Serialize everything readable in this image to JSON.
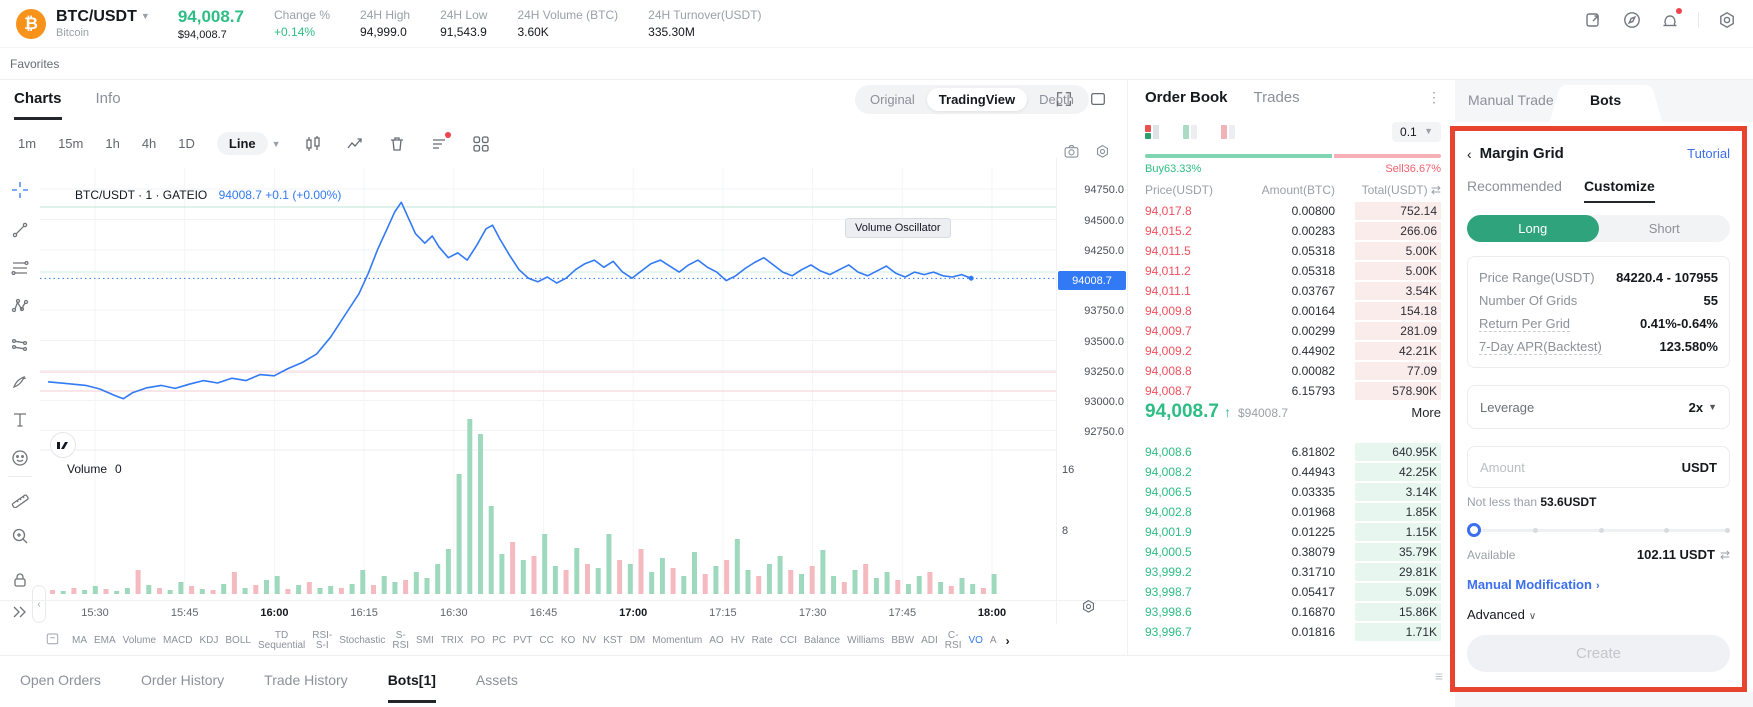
{
  "topbar": {
    "pair": "BTC/USDT",
    "pair_sub": "Bitcoin",
    "price": "94,008.7",
    "price_usd": "$94,008.7",
    "stats": [
      {
        "label": "Change %",
        "value": "+0.14%",
        "green": true
      },
      {
        "label": "24H High",
        "value": "94,999.0"
      },
      {
        "label": "24H Low",
        "value": "91,543.9"
      },
      {
        "label": "24H Volume (BTC)",
        "value": "3.60K"
      },
      {
        "label": "24H Turnover(USDT)",
        "value": "335.30M"
      }
    ]
  },
  "favorites_label": "Favorites",
  "chart": {
    "tabs": [
      {
        "label": "Charts",
        "active": true
      },
      {
        "label": "Info",
        "active": false
      }
    ],
    "timeframes": [
      "1m",
      "15m",
      "1h",
      "4h",
      "1D"
    ],
    "chart_type": "Line",
    "view_modes": [
      {
        "label": "Original",
        "active": false
      },
      {
        "label": "TradingView",
        "active": true
      },
      {
        "label": "Depth",
        "active": false
      }
    ],
    "legend_symbol": "BTC/USDT · 1 · GATEIO",
    "legend_quote": "94008.7 +0.1 (+0.00%)",
    "tooltip": "Volume Oscillator",
    "volume_legend": "Volume",
    "volume_value": "0",
    "price_axis": [
      "94750.0",
      "94500.0",
      "94250.0",
      "93750.0",
      "93500.0",
      "93250.0",
      "93000.0",
      "92750.0"
    ],
    "price_tag": "94008.7",
    "vol_axis": [
      "16",
      "8"
    ],
    "time_axis": [
      "15:30",
      "15:45",
      "16:00",
      "16:15",
      "16:30",
      "16:45",
      "17:00",
      "17:15",
      "17:30",
      "17:45",
      "18:00"
    ],
    "bold_times": [
      "16:00",
      "17:00",
      "18:00"
    ],
    "indicators": [
      "MA",
      "EMA",
      "Volume",
      "MACD",
      "KDJ",
      "BOLL",
      "TD\nSequential",
      "RSI-\nS-I",
      "Stochastic",
      "S-\nRSI",
      "SMI",
      "TRIX",
      "PO",
      "PC",
      "PVT",
      "CC",
      "KO",
      "NV",
      "KST",
      "DM",
      "Momentum",
      "AO",
      "HV",
      "Rate",
      "CCI",
      "Balance",
      "Williams",
      "BBW",
      "ADI",
      "C-\nRSI",
      "VO",
      "A"
    ],
    "active_indicator": "VO",
    "series": [
      [
        0,
        93150
      ],
      [
        0.02,
        93135
      ],
      [
        0.04,
        93120
      ],
      [
        0.055,
        93090
      ],
      [
        0.07,
        93040
      ],
      [
        0.08,
        93010
      ],
      [
        0.09,
        93060
      ],
      [
        0.105,
        93100
      ],
      [
        0.12,
        93120
      ],
      [
        0.135,
        93095
      ],
      [
        0.15,
        93130
      ],
      [
        0.165,
        93160
      ],
      [
        0.18,
        93140
      ],
      [
        0.195,
        93180
      ],
      [
        0.21,
        93160
      ],
      [
        0.225,
        93210
      ],
      [
        0.24,
        93200
      ],
      [
        0.255,
        93260
      ],
      [
        0.27,
        93310
      ],
      [
        0.285,
        93380
      ],
      [
        0.3,
        93520
      ],
      [
        0.315,
        93700
      ],
      [
        0.33,
        93880
      ],
      [
        0.34,
        94050
      ],
      [
        0.35,
        94250
      ],
      [
        0.36,
        94420
      ],
      [
        0.368,
        94560
      ],
      [
        0.375,
        94640
      ],
      [
        0.382,
        94520
      ],
      [
        0.39,
        94380
      ],
      [
        0.4,
        94300
      ],
      [
        0.408,
        94360
      ],
      [
        0.415,
        94270
      ],
      [
        0.425,
        94180
      ],
      [
        0.435,
        94220
      ],
      [
        0.445,
        94160
      ],
      [
        0.455,
        94280
      ],
      [
        0.465,
        94420
      ],
      [
        0.472,
        94450
      ],
      [
        0.48,
        94330
      ],
      [
        0.49,
        94200
      ],
      [
        0.5,
        94080
      ],
      [
        0.51,
        94010
      ],
      [
        0.52,
        93980
      ],
      [
        0.53,
        94020
      ],
      [
        0.54,
        93970
      ],
      [
        0.55,
        94010
      ],
      [
        0.56,
        94080
      ],
      [
        0.57,
        94130
      ],
      [
        0.58,
        94160
      ],
      [
        0.59,
        94100
      ],
      [
        0.6,
        94150
      ],
      [
        0.61,
        94060
      ],
      [
        0.62,
        94010
      ],
      [
        0.63,
        94070
      ],
      [
        0.64,
        94130
      ],
      [
        0.65,
        94160
      ],
      [
        0.66,
        94110
      ],
      [
        0.67,
        94060
      ],
      [
        0.68,
        94120
      ],
      [
        0.69,
        94160
      ],
      [
        0.7,
        94100
      ],
      [
        0.71,
        94060
      ],
      [
        0.72,
        93990
      ],
      [
        0.73,
        94030
      ],
      [
        0.74,
        94090
      ],
      [
        0.75,
        94140
      ],
      [
        0.76,
        94180
      ],
      [
        0.77,
        94120
      ],
      [
        0.78,
        94060
      ],
      [
        0.79,
        94030
      ],
      [
        0.8,
        94080
      ],
      [
        0.81,
        94120
      ],
      [
        0.82,
        94070
      ],
      [
        0.83,
        94040
      ],
      [
        0.84,
        94080
      ],
      [
        0.85,
        94120
      ],
      [
        0.86,
        94060
      ],
      [
        0.87,
        94030
      ],
      [
        0.88,
        94070
      ],
      [
        0.89,
        94110
      ],
      [
        0.9,
        94050
      ],
      [
        0.91,
        94020
      ],
      [
        0.92,
        94060
      ],
      [
        0.93,
        94040
      ],
      [
        0.94,
        94060
      ],
      [
        0.95,
        94030
      ],
      [
        0.96,
        94020
      ],
      [
        0.97,
        94040
      ],
      [
        0.98,
        94009
      ]
    ],
    "volumes": [
      -4,
      3,
      -6,
      4,
      8,
      -5,
      3,
      6,
      -24,
      9,
      -6,
      4,
      12,
      -8,
      5,
      -4,
      10,
      -22,
      6,
      -9,
      14,
      18,
      -5,
      9,
      -12,
      6,
      8,
      -6,
      10,
      24,
      -9,
      18,
      12,
      -14,
      22,
      16,
      30,
      45,
      120,
      175,
      160,
      88,
      40,
      -52,
      34,
      -38,
      60,
      28,
      -24,
      46,
      -30,
      26,
      60,
      -34,
      30,
      -45,
      22,
      36,
      -26,
      18,
      42,
      -20,
      28,
      -34,
      55,
      24,
      -18,
      30,
      38,
      -24,
      20,
      -28,
      44,
      18,
      -12,
      24,
      -30,
      16,
      22,
      -14,
      10,
      18,
      -22,
      12,
      -8,
      16,
      10,
      -6,
      20
    ]
  },
  "order_book": {
    "tabs": [
      {
        "label": "Order Book",
        "active": true
      },
      {
        "label": "Trades",
        "active": false
      }
    ],
    "precision": "0.1",
    "buy_ratio": "Buy63.33%",
    "sell_ratio": "Sell36.67%",
    "buy_pct": 63.33,
    "headers": [
      "Price(USDT)",
      "Amount(BTC)",
      "Total(USDT) ⇄"
    ],
    "asks": [
      [
        "94,017.8",
        "0.00800",
        "752.14"
      ],
      [
        "94,015.2",
        "0.00283",
        "266.06"
      ],
      [
        "94,011.5",
        "0.05318",
        "5.00K"
      ],
      [
        "94,011.2",
        "0.05318",
        "5.00K"
      ],
      [
        "94,011.1",
        "0.03767",
        "3.54K"
      ],
      [
        "94,009.8",
        "0.00164",
        "154.18"
      ],
      [
        "94,009.7",
        "0.00299",
        "281.09"
      ],
      [
        "94,009.2",
        "0.44902",
        "42.21K"
      ],
      [
        "94,008.8",
        "0.00082",
        "77.09"
      ],
      [
        "94,008.7",
        "6.15793",
        "578.90K"
      ]
    ],
    "last_price": "94,008.7",
    "last_arrow": "↑",
    "last_usd": "$94008.7",
    "more_label": "More",
    "bids": [
      [
        "94,008.6",
        "6.81802",
        "640.95K"
      ],
      [
        "94,008.2",
        "0.44943",
        "42.25K"
      ],
      [
        "94,006.5",
        "0.03335",
        "3.14K"
      ],
      [
        "94,002.8",
        "0.01968",
        "1.85K"
      ],
      [
        "94,001.9",
        "0.01225",
        "1.15K"
      ],
      [
        "94,000.5",
        "0.38079",
        "35.79K"
      ],
      [
        "93,999.2",
        "0.31710",
        "29.81K"
      ],
      [
        "93,998.7",
        "0.05417",
        "5.09K"
      ],
      [
        "93,998.6",
        "0.16870",
        "15.86K"
      ],
      [
        "93,996.7",
        "0.01816",
        "1.71K"
      ]
    ]
  },
  "panel": {
    "tab_manual": "Manual Trade",
    "tab_bots": "Bots",
    "back": "‹",
    "title": "Margin Grid",
    "tutorial": "Tutorial",
    "sub_tabs": [
      {
        "label": "Recommended",
        "active": false
      },
      {
        "label": "Customize",
        "active": true
      }
    ],
    "long_label": "Long",
    "short_label": "Short",
    "fields": [
      {
        "label": "Price Range(USDT)",
        "value": "84220.4 - 107955",
        "dashed": false
      },
      {
        "label": "Number Of Grids",
        "value": "55",
        "dashed": false
      },
      {
        "label": "Return Per Grid",
        "value": "0.41%-0.64%",
        "dashed": true
      },
      {
        "label": "7-Day APR(Backtest)",
        "value": "123.580%",
        "dashed": true
      }
    ],
    "leverage_label": "Leverage",
    "leverage_value": "2x",
    "amount_placeholder": "Amount",
    "amount_unit": "USDT",
    "min_note_prefix": "Not less than ",
    "min_note_value": "53.6USDT",
    "available_label": "Available",
    "available_value": "102.11 USDT",
    "swap_icon": "⇄",
    "manual_modification": "Manual Modification",
    "manual_chevron": "›",
    "advanced_label": "Advanced",
    "advanced_chevron": "∨",
    "create_label": "Create"
  },
  "bottom_tabs": [
    {
      "label": "Open Orders",
      "active": false
    },
    {
      "label": "Order History",
      "active": false
    },
    {
      "label": "Trade History",
      "active": false
    },
    {
      "label": "Bots[1]",
      "active": true
    },
    {
      "label": "Assets",
      "active": false
    }
  ],
  "colors": {
    "green": "#2ebd85",
    "red": "#f0515d",
    "blue": "#3179f5",
    "link_blue": "#3c6ff0",
    "annotation_red": "#e8432e",
    "vol_green": "#9ed9bd",
    "vol_red": "#f5b9c0"
  }
}
